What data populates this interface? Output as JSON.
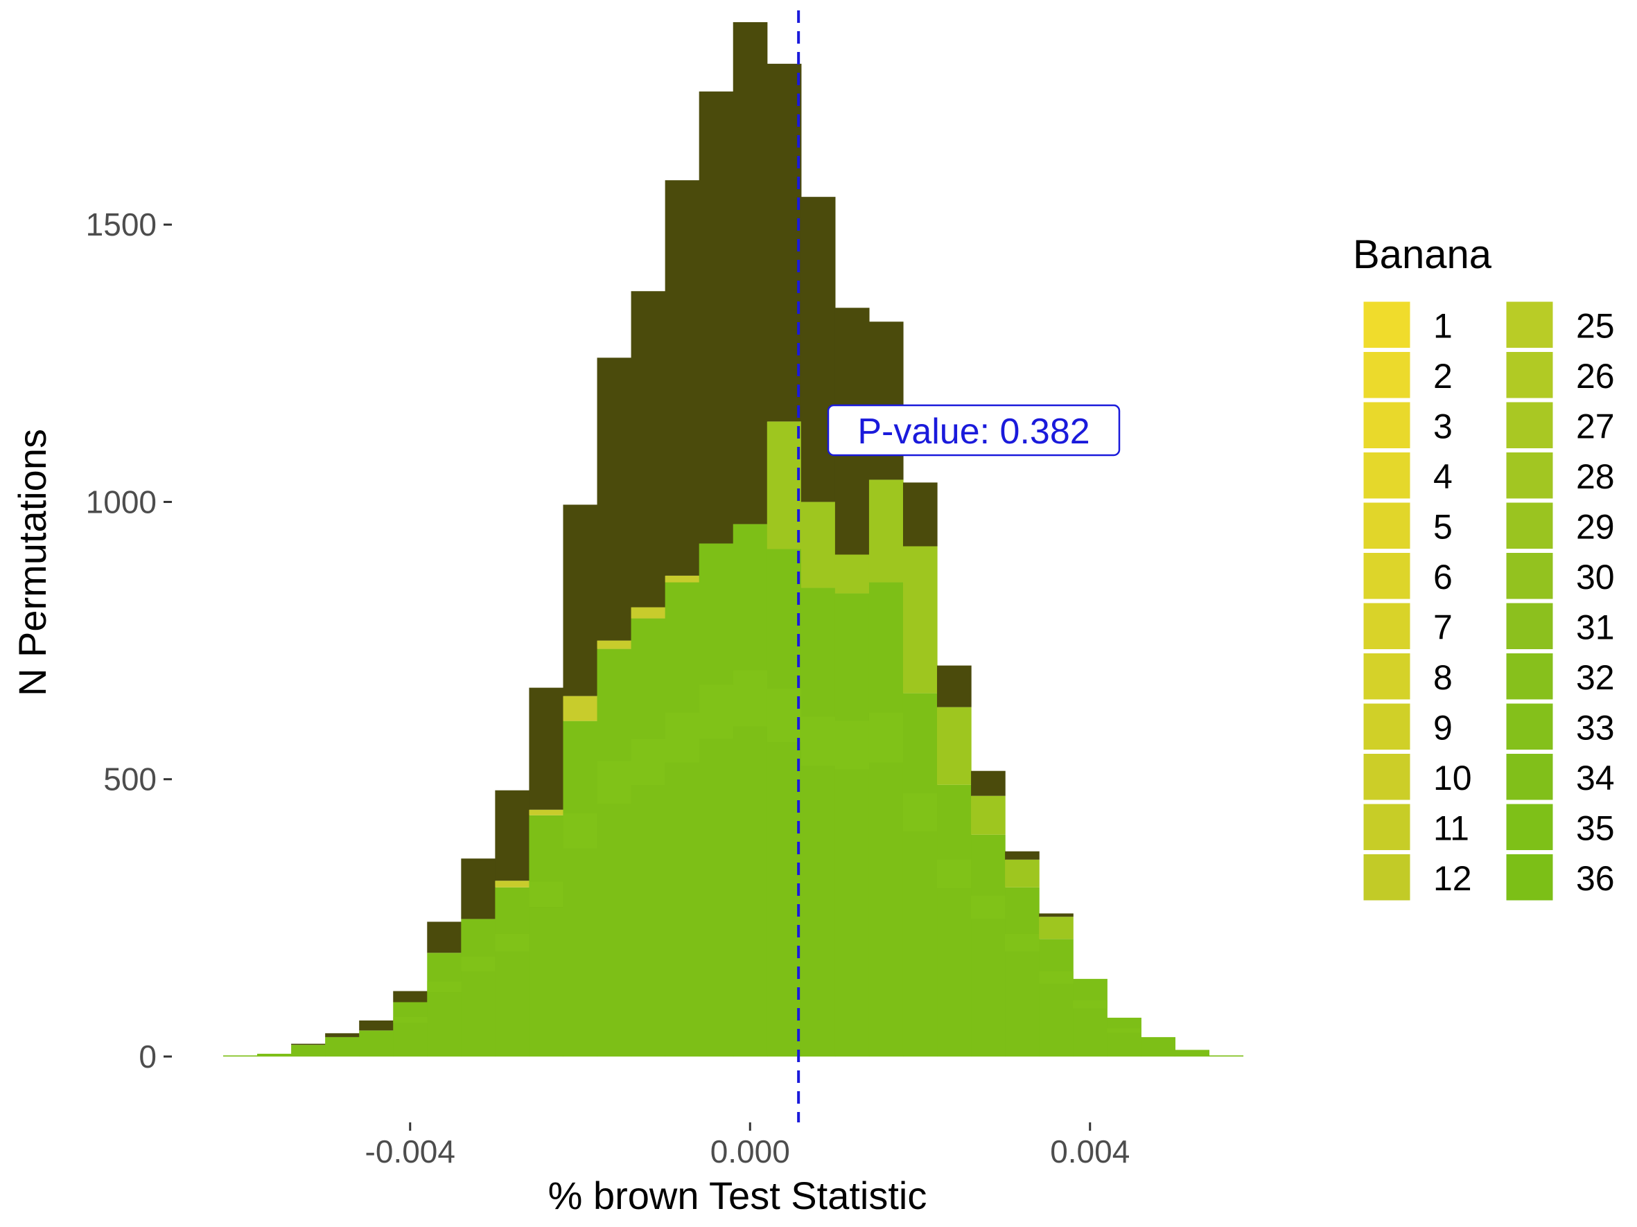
{
  "chart_data": {
    "type": "bar",
    "subtype": "stacked-histogram",
    "xlabel": "% brown Test Statistic",
    "ylabel": "N Permutations",
    "xlim": [
      -0.0062,
      0.006
    ],
    "ylim": [
      -100,
      1880
    ],
    "x_ticks": [
      {
        "value": -0.004,
        "label": "-0.004"
      },
      {
        "value": 0.0,
        "label": "0.000"
      },
      {
        "value": 0.004,
        "label": "0.004"
      }
    ],
    "y_ticks": [
      {
        "value": 0,
        "label": "0"
      },
      {
        "value": 500,
        "label": "500"
      },
      {
        "value": 1000,
        "label": "1000"
      },
      {
        "value": 1500,
        "label": "1500"
      }
    ],
    "grid": false,
    "bin_width": 0.0004,
    "bins": [
      {
        "x0": -0.0062,
        "total": 2,
        "green": 2,
        "yellow": 0,
        "light": 0
      },
      {
        "x0": -0.0058,
        "total": 5,
        "green": 5,
        "yellow": 0,
        "light": 0
      },
      {
        "x0": -0.0054,
        "total": 23,
        "green": 21,
        "yellow": 0,
        "light": 0
      },
      {
        "x0": -0.005,
        "total": 42,
        "green": 35,
        "yellow": 0,
        "light": 0
      },
      {
        "x0": -0.0046,
        "total": 65,
        "green": 47,
        "yellow": 0,
        "light": 0
      },
      {
        "x0": -0.0042,
        "total": 118,
        "green": 98,
        "yellow": 0,
        "light": 0
      },
      {
        "x0": -0.0038,
        "total": 243,
        "green": 187,
        "yellow": 0,
        "light": 0
      },
      {
        "x0": -0.0034,
        "total": 357,
        "green": 248,
        "yellow": 0,
        "light": 0
      },
      {
        "x0": -0.003,
        "total": 480,
        "green": 305,
        "yellow": 12,
        "light": 0
      },
      {
        "x0": -0.0026,
        "total": 665,
        "green": 435,
        "yellow": 10,
        "light": 0
      },
      {
        "x0": -0.0022,
        "total": 995,
        "green": 605,
        "yellow": 45,
        "light": 0
      },
      {
        "x0": -0.0018,
        "total": 1260,
        "green": 735,
        "yellow": 15,
        "light": 0
      },
      {
        "x0": -0.0014,
        "total": 1380,
        "green": 790,
        "yellow": 20,
        "light": 0
      },
      {
        "x0": -0.001,
        "total": 1580,
        "green": 855,
        "yellow": 12,
        "light": 0
      },
      {
        "x0": -0.0006,
        "total": 1740,
        "green": 925,
        "yellow": 0,
        "light": 0
      },
      {
        "x0": -0.0002,
        "total": 1865,
        "green": 960,
        "yellow": 0,
        "light": 0
      },
      {
        "x0": 0.0002,
        "total": 1790,
        "green": 915,
        "yellow": 0,
        "light": 230
      },
      {
        "x0": 0.0006,
        "total": 1550,
        "green": 845,
        "yellow": 0,
        "light": 155
      },
      {
        "x0": 0.001,
        "total": 1350,
        "green": 835,
        "yellow": 0,
        "light": 70
      },
      {
        "x0": 0.0014,
        "total": 1325,
        "green": 855,
        "yellow": 0,
        "light": 185
      },
      {
        "x0": 0.0018,
        "total": 1035,
        "green": 655,
        "yellow": 0,
        "light": 265
      },
      {
        "x0": 0.0022,
        "total": 705,
        "green": 490,
        "yellow": 0,
        "light": 140
      },
      {
        "x0": 0.0026,
        "total": 515,
        "green": 400,
        "yellow": 0,
        "light": 70
      },
      {
        "x0": 0.003,
        "total": 370,
        "green": 305,
        "yellow": 0,
        "light": 50
      },
      {
        "x0": 0.0034,
        "total": 258,
        "green": 212,
        "yellow": 0,
        "light": 40
      },
      {
        "x0": 0.0038,
        "total": 140,
        "green": 140,
        "yellow": 0,
        "light": 0
      },
      {
        "x0": 0.0042,
        "total": 70,
        "green": 70,
        "yellow": 0,
        "light": 0
      },
      {
        "x0": 0.0046,
        "total": 35,
        "green": 35,
        "yellow": 0,
        "light": 0
      },
      {
        "x0": 0.005,
        "total": 12,
        "green": 12,
        "yellow": 0,
        "light": 0
      },
      {
        "x0": 0.0054,
        "total": 2,
        "green": 2,
        "yellow": 0,
        "light": 0
      }
    ],
    "observed_line": {
      "x": 0.00057,
      "style": "dashed",
      "color": "#1a1adb"
    },
    "annotation": {
      "text": "P-value: 0.382",
      "color": "#1a1adb"
    },
    "legend": {
      "title": "Banana",
      "placement": "right",
      "columns": [
        {
          "labels": [
            "1",
            "2",
            "3",
            "4",
            "5",
            "6",
            "7",
            "8",
            "9",
            "10",
            "11",
            "12"
          ],
          "colors": [
            "#f0dc2c",
            "#ecda2c",
            "#e9d92b",
            "#e5d82b",
            "#e1d62a",
            "#ddd52a",
            "#d9d329",
            "#d5d229",
            "#d0d028",
            "#ccce28",
            "#c7cd27",
            "#c2cb27"
          ]
        },
        {
          "labels": [
            "25",
            "26",
            "27",
            "28",
            "29",
            "30",
            "31",
            "32",
            "33",
            "34",
            "35",
            "36"
          ],
          "colors": [
            "#b9cc26",
            "#b1ca24",
            "#a9c823",
            "#a2c622",
            "#9ac420",
            "#93c21f",
            "#8cc01e",
            "#87c01c",
            "#84c01b",
            "#81bf1a",
            "#7ec018",
            "#7cbf17"
          ]
        }
      ]
    },
    "colors": {
      "top_stack": "#4b4b0c",
      "green_base": "#7dbf17",
      "green_stripe": "#84c41a",
      "yellow_stack": "#c8cc2c",
      "light_stack": "#9ec61f"
    }
  }
}
